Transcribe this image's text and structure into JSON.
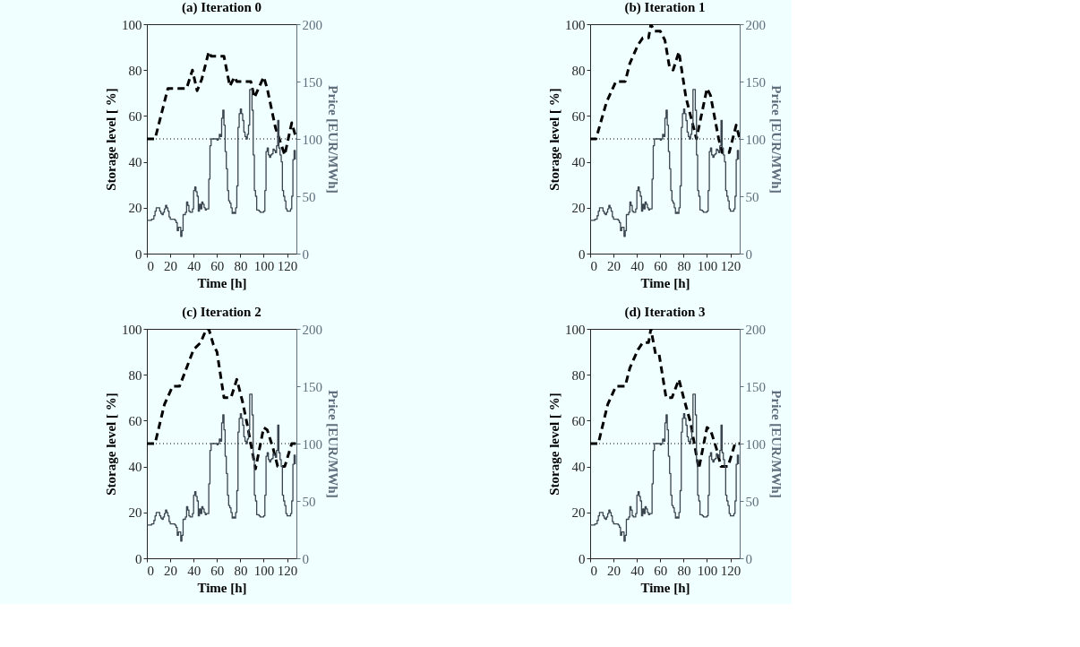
{
  "chart_data": [
    {
      "type": "line",
      "title": "(a) Iteration 0",
      "xlabel": "Time [h]",
      "ylabel": "Storage level [ %]",
      "y2label": "Price [EUR/MWh]",
      "xlim": [
        0,
        128
      ],
      "xticks": [
        0,
        20,
        40,
        60,
        80,
        100,
        120
      ],
      "ylim": [
        0,
        100
      ],
      "yticks": [
        0,
        20,
        40,
        60,
        80,
        100
      ],
      "y2lim": [
        0,
        200
      ],
      "y2ticks": [
        0,
        50,
        100,
        150,
        200
      ],
      "grid": false,
      "ref_lines": [
        {
          "axis": "y",
          "value": 50,
          "color": "#000000",
          "line_style": "dotted"
        }
      ],
      "series": [
        {
          "type": "line",
          "color": "#000000",
          "line_style": "dashed",
          "x": [
            0,
            7,
            18,
            34,
            39,
            43,
            47,
            53,
            55,
            66,
            71,
            75,
            77,
            89,
            92,
            100,
            103,
            110,
            118,
            124,
            128
          ],
          "values": [
            50,
            50,
            72,
            72,
            80,
            71,
            76,
            88,
            86,
            86,
            73,
            77,
            75,
            75,
            68,
            77,
            72,
            55,
            43,
            57,
            50
          ]
        },
        {
          "type": "step",
          "axis": "y2",
          "color": "#3c4650",
          "line_style": "solid",
          "x": [
            0,
            1,
            2,
            3,
            4,
            5,
            6,
            7,
            8,
            9,
            10,
            11,
            12,
            13,
            14,
            15,
            16,
            17,
            18,
            19,
            20,
            21,
            22,
            23,
            24,
            25,
            26,
            27,
            28,
            29,
            30,
            31,
            32,
            33,
            34,
            35,
            36,
            37,
            38,
            39,
            40,
            41,
            42,
            43,
            44,
            45,
            46,
            47,
            48,
            49,
            50,
            51,
            52,
            53,
            54,
            55,
            56,
            57,
            58,
            59,
            60,
            61,
            62,
            63,
            64,
            65,
            66,
            67,
            68,
            69,
            70,
            71,
            72,
            73,
            74,
            75,
            76,
            77,
            78,
            79,
            80,
            81,
            82,
            83,
            84,
            85,
            86,
            87,
            88,
            89,
            90,
            91,
            92,
            93,
            94,
            95,
            96,
            97,
            98,
            99,
            100,
            101,
            102,
            103,
            104,
            105,
            106,
            107,
            108,
            109,
            110,
            111,
            112,
            113,
            114,
            115,
            116,
            117,
            118,
            119,
            120,
            121,
            122,
            123,
            124,
            125,
            126,
            127
          ],
          "values": [
            29,
            29,
            29,
            29,
            30,
            30,
            33,
            37,
            40,
            40,
            40,
            37,
            35,
            34,
            36,
            39,
            42,
            40,
            37,
            32,
            30,
            30,
            30,
            30,
            29,
            27,
            20,
            23,
            23,
            15,
            20,
            34,
            34,
            36,
            45,
            42,
            37,
            36,
            36,
            39,
            55,
            58,
            54,
            50,
            37,
            43,
            39,
            45,
            43,
            40,
            38,
            39,
            39,
            65,
            94,
            100,
            100,
            100,
            100,
            100,
            99,
            100,
            104,
            102,
            118,
            125,
            112,
            89,
            74,
            55,
            46,
            44,
            40,
            35,
            36,
            35,
            40,
            59,
            110,
            122,
            126,
            122,
            116,
            106,
            102,
            100,
            104,
            112,
            143,
            143,
            125,
            86,
            55,
            50,
            38,
            38,
            37,
            36,
            36,
            36,
            37,
            55,
            89,
            92,
            86,
            84,
            86,
            87,
            91,
            90,
            88,
            94,
            116,
            92,
            86,
            80,
            55,
            50,
            46,
            39,
            37,
            37,
            37,
            39,
            50,
            82,
            90,
            82
          ]
        }
      ]
    },
    {
      "type": "line",
      "title": "(b) Iteration 1",
      "xlabel": "Time [h]",
      "ylabel": "Storage level [ %]",
      "y2label": "Price [EUR/MWh]",
      "xlim": [
        0,
        128
      ],
      "xticks": [
        0,
        20,
        40,
        60,
        80,
        100,
        120
      ],
      "ylim": [
        0,
        100
      ],
      "yticks": [
        0,
        20,
        40,
        60,
        80,
        100
      ],
      "y2lim": [
        0,
        200
      ],
      "y2ticks": [
        0,
        50,
        100,
        150,
        200
      ],
      "grid": false,
      "ref_lines": [
        {
          "axis": "y",
          "value": 50,
          "color": "#000000",
          "line_style": "dotted"
        }
      ],
      "series": [
        {
          "type": "line",
          "color": "#000000",
          "line_style": "dashed",
          "x": [
            0,
            5,
            14,
            22,
            30,
            34,
            41,
            45,
            50,
            52,
            55,
            60,
            64,
            68,
            71,
            76,
            82,
            91,
            100,
            103,
            110,
            113,
            119,
            125,
            128
          ],
          "values": [
            50,
            50,
            66,
            75,
            75,
            83,
            91,
            94,
            94,
            100,
            97,
            97,
            93,
            81,
            80,
            88,
            68,
            50,
            72,
            69,
            50,
            44,
            44,
            56,
            50
          ]
        },
        {
          "type": "step",
          "axis": "y2",
          "color": "#3c4650",
          "line_style": "solid",
          "x": [
            0,
            1,
            2,
            3,
            4,
            5,
            6,
            7,
            8,
            9,
            10,
            11,
            12,
            13,
            14,
            15,
            16,
            17,
            18,
            19,
            20,
            21,
            22,
            23,
            24,
            25,
            26,
            27,
            28,
            29,
            30,
            31,
            32,
            33,
            34,
            35,
            36,
            37,
            38,
            39,
            40,
            41,
            42,
            43,
            44,
            45,
            46,
            47,
            48,
            49,
            50,
            51,
            52,
            53,
            54,
            55,
            56,
            57,
            58,
            59,
            60,
            61,
            62,
            63,
            64,
            65,
            66,
            67,
            68,
            69,
            70,
            71,
            72,
            73,
            74,
            75,
            76,
            77,
            78,
            79,
            80,
            81,
            82,
            83,
            84,
            85,
            86,
            87,
            88,
            89,
            90,
            91,
            92,
            93,
            94,
            95,
            96,
            97,
            98,
            99,
            100,
            101,
            102,
            103,
            104,
            105,
            106,
            107,
            108,
            109,
            110,
            111,
            112,
            113,
            114,
            115,
            116,
            117,
            118,
            119,
            120,
            121,
            122,
            123,
            124,
            125,
            126,
            127
          ],
          "values": [
            29,
            29,
            29,
            29,
            30,
            30,
            33,
            37,
            40,
            40,
            40,
            37,
            35,
            34,
            36,
            39,
            42,
            40,
            37,
            32,
            30,
            30,
            30,
            30,
            29,
            27,
            20,
            23,
            23,
            15,
            20,
            34,
            34,
            36,
            45,
            42,
            37,
            36,
            36,
            39,
            55,
            58,
            54,
            50,
            37,
            43,
            39,
            45,
            43,
            40,
            38,
            39,
            39,
            65,
            94,
            100,
            100,
            100,
            100,
            100,
            99,
            100,
            104,
            102,
            118,
            125,
            112,
            89,
            74,
            55,
            46,
            44,
            40,
            35,
            36,
            35,
            40,
            59,
            110,
            122,
            126,
            122,
            116,
            106,
            102,
            100,
            104,
            112,
            143,
            143,
            125,
            86,
            55,
            50,
            38,
            38,
            37,
            36,
            36,
            36,
            37,
            55,
            89,
            92,
            86,
            84,
            86,
            87,
            91,
            90,
            88,
            94,
            116,
            92,
            86,
            80,
            55,
            50,
            46,
            39,
            37,
            37,
            37,
            39,
            50,
            82,
            90,
            82
          ]
        }
      ]
    },
    {
      "type": "line",
      "title": "(c) Iteration 2",
      "xlabel": "Time [h]",
      "ylabel": "Storage level [ %]",
      "y2label": "Price [EUR/MWh]",
      "xlim": [
        0,
        128
      ],
      "xticks": [
        0,
        20,
        40,
        60,
        80,
        100,
        120
      ],
      "ylim": [
        0,
        100
      ],
      "yticks": [
        0,
        20,
        40,
        60,
        80,
        100
      ],
      "y2lim": [
        0,
        200
      ],
      "y2ticks": [
        0,
        50,
        100,
        150,
        200
      ],
      "grid": false,
      "ref_lines": [
        {
          "axis": "y",
          "value": 50,
          "color": "#000000",
          "line_style": "dotted"
        }
      ],
      "series": [
        {
          "type": "line",
          "color": "#000000",
          "line_style": "dashed",
          "x": [
            0,
            7,
            15,
            22,
            28,
            34,
            40,
            46,
            51,
            53,
            57,
            60,
            66,
            72,
            77,
            82,
            86,
            93,
            100,
            103,
            108,
            112,
            118,
            124,
            128
          ],
          "values": [
            50,
            50,
            67,
            75,
            75,
            83,
            91,
            94,
            100,
            100,
            93,
            90,
            70,
            70,
            78,
            68,
            58,
            39,
            57,
            56,
            48,
            40,
            40,
            50,
            50
          ]
        },
        {
          "type": "step",
          "axis": "y2",
          "color": "#3c4650",
          "line_style": "solid",
          "x": [
            0,
            1,
            2,
            3,
            4,
            5,
            6,
            7,
            8,
            9,
            10,
            11,
            12,
            13,
            14,
            15,
            16,
            17,
            18,
            19,
            20,
            21,
            22,
            23,
            24,
            25,
            26,
            27,
            28,
            29,
            30,
            31,
            32,
            33,
            34,
            35,
            36,
            37,
            38,
            39,
            40,
            41,
            42,
            43,
            44,
            45,
            46,
            47,
            48,
            49,
            50,
            51,
            52,
            53,
            54,
            55,
            56,
            57,
            58,
            59,
            60,
            61,
            62,
            63,
            64,
            65,
            66,
            67,
            68,
            69,
            70,
            71,
            72,
            73,
            74,
            75,
            76,
            77,
            78,
            79,
            80,
            81,
            82,
            83,
            84,
            85,
            86,
            87,
            88,
            89,
            90,
            91,
            92,
            93,
            94,
            95,
            96,
            97,
            98,
            99,
            100,
            101,
            102,
            103,
            104,
            105,
            106,
            107,
            108,
            109,
            110,
            111,
            112,
            113,
            114,
            115,
            116,
            117,
            118,
            119,
            120,
            121,
            122,
            123,
            124,
            125,
            126,
            127
          ],
          "values": [
            29,
            29,
            29,
            29,
            30,
            30,
            33,
            37,
            40,
            40,
            40,
            37,
            35,
            34,
            36,
            39,
            42,
            40,
            37,
            32,
            30,
            30,
            30,
            30,
            29,
            27,
            20,
            23,
            23,
            15,
            20,
            34,
            34,
            36,
            45,
            42,
            37,
            36,
            36,
            39,
            55,
            58,
            54,
            50,
            37,
            43,
            39,
            45,
            43,
            40,
            38,
            39,
            39,
            65,
            94,
            100,
            100,
            100,
            100,
            100,
            99,
            100,
            104,
            102,
            118,
            125,
            112,
            89,
            74,
            55,
            46,
            44,
            40,
            35,
            36,
            35,
            40,
            59,
            110,
            122,
            126,
            122,
            116,
            106,
            102,
            100,
            104,
            112,
            143,
            143,
            125,
            86,
            55,
            50,
            38,
            38,
            37,
            36,
            36,
            36,
            37,
            55,
            89,
            92,
            86,
            84,
            86,
            87,
            91,
            90,
            88,
            94,
            116,
            92,
            86,
            80,
            55,
            50,
            46,
            39,
            37,
            37,
            37,
            39,
            50,
            82,
            90,
            82
          ]
        }
      ]
    },
    {
      "type": "line",
      "title": "(d) Iteration 3",
      "xlabel": "Time [h]",
      "ylabel": "Storage level [ %]",
      "y2label": "Price [EUR/MWh]",
      "xlim": [
        0,
        128
      ],
      "xticks": [
        0,
        20,
        40,
        60,
        80,
        100,
        120
      ],
      "ylim": [
        0,
        100
      ],
      "yticks": [
        0,
        20,
        40,
        60,
        80,
        100
      ],
      "y2lim": [
        0,
        200
      ],
      "y2ticks": [
        0,
        50,
        100,
        150,
        200
      ],
      "grid": false,
      "ref_lines": [
        {
          "axis": "y",
          "value": 50,
          "color": "#000000",
          "line_style": "dotted"
        }
      ],
      "series": [
        {
          "type": "line",
          "color": "#000000",
          "line_style": "dashed",
          "x": [
            0,
            7,
            15,
            22,
            30,
            34,
            41,
            45,
            50,
            52,
            56,
            59,
            65,
            70,
            76,
            80,
            86,
            93,
            100,
            103,
            108,
            112,
            118,
            124,
            128
          ],
          "values": [
            50,
            50,
            67,
            75,
            75,
            83,
            91,
            94,
            94,
            100,
            89,
            89,
            70,
            70,
            78,
            70,
            59,
            39,
            57,
            56,
            48,
            40,
            40,
            50,
            50
          ]
        },
        {
          "type": "step",
          "axis": "y2",
          "color": "#3c4650",
          "line_style": "solid",
          "x": [
            0,
            1,
            2,
            3,
            4,
            5,
            6,
            7,
            8,
            9,
            10,
            11,
            12,
            13,
            14,
            15,
            16,
            17,
            18,
            19,
            20,
            21,
            22,
            23,
            24,
            25,
            26,
            27,
            28,
            29,
            30,
            31,
            32,
            33,
            34,
            35,
            36,
            37,
            38,
            39,
            40,
            41,
            42,
            43,
            44,
            45,
            46,
            47,
            48,
            49,
            50,
            51,
            52,
            53,
            54,
            55,
            56,
            57,
            58,
            59,
            60,
            61,
            62,
            63,
            64,
            65,
            66,
            67,
            68,
            69,
            70,
            71,
            72,
            73,
            74,
            75,
            76,
            77,
            78,
            79,
            80,
            81,
            82,
            83,
            84,
            85,
            86,
            87,
            88,
            89,
            90,
            91,
            92,
            93,
            94,
            95,
            96,
            97,
            98,
            99,
            100,
            101,
            102,
            103,
            104,
            105,
            106,
            107,
            108,
            109,
            110,
            111,
            112,
            113,
            114,
            115,
            116,
            117,
            118,
            119,
            120,
            121,
            122,
            123,
            124,
            125,
            126,
            127
          ],
          "values": [
            29,
            29,
            29,
            29,
            30,
            30,
            33,
            37,
            40,
            40,
            40,
            37,
            35,
            34,
            36,
            39,
            42,
            40,
            37,
            32,
            30,
            30,
            30,
            30,
            29,
            27,
            20,
            23,
            23,
            15,
            20,
            34,
            34,
            36,
            45,
            42,
            37,
            36,
            36,
            39,
            55,
            58,
            54,
            50,
            37,
            43,
            39,
            45,
            43,
            40,
            38,
            39,
            39,
            65,
            94,
            100,
            100,
            100,
            100,
            100,
            99,
            100,
            104,
            102,
            118,
            125,
            112,
            89,
            74,
            55,
            46,
            44,
            40,
            35,
            36,
            35,
            40,
            59,
            110,
            122,
            126,
            122,
            116,
            106,
            102,
            100,
            104,
            112,
            143,
            143,
            125,
            86,
            55,
            50,
            38,
            38,
            37,
            36,
            36,
            36,
            37,
            55,
            89,
            92,
            86,
            84,
            86,
            87,
            91,
            90,
            88,
            94,
            116,
            92,
            86,
            80,
            55,
            50,
            46,
            39,
            37,
            37,
            37,
            39,
            50,
            82,
            90,
            82
          ]
        }
      ]
    }
  ]
}
